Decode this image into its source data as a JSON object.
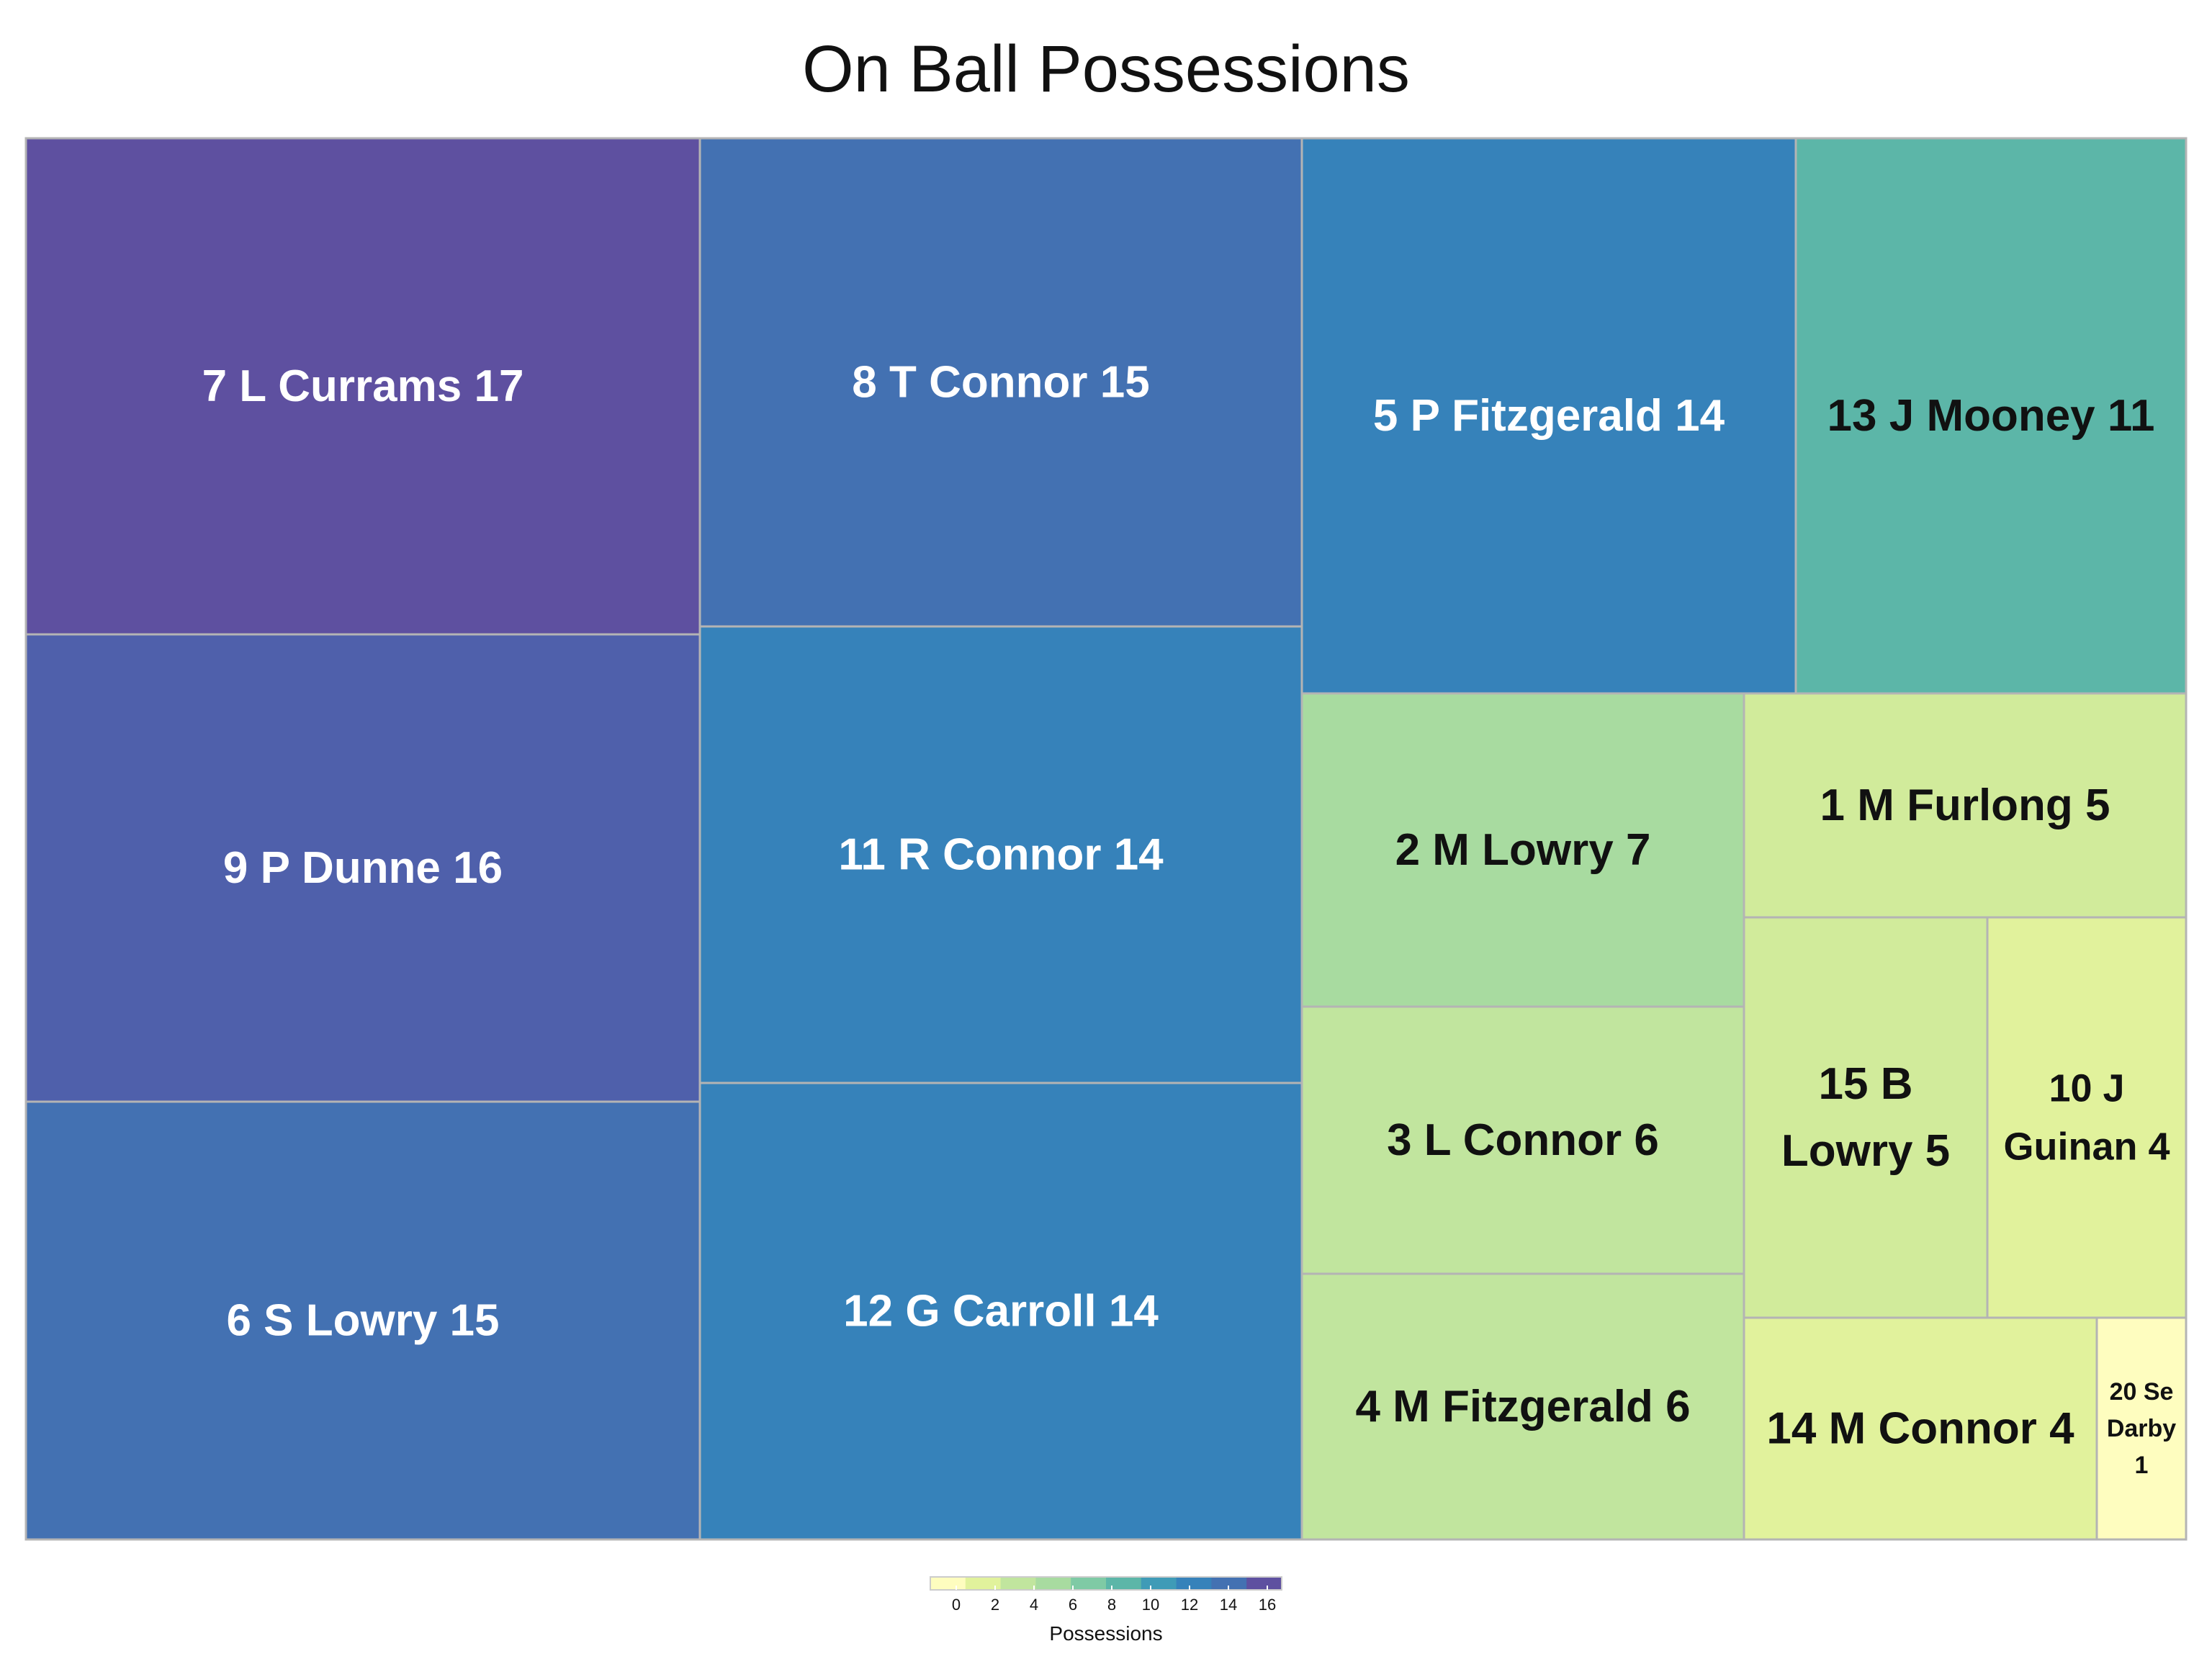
{
  "chart_data": {
    "type": "treemap",
    "title": "On Ball Possessions",
    "legend_title": "Possessions",
    "legend_ticks": [
      0,
      2,
      4,
      6,
      8,
      10,
      12,
      14,
      16
    ],
    "color_range": [
      0,
      17
    ],
    "items": [
      {
        "label": "7 L Currams 17",
        "lines": [
          "7 L Currams 17"
        ],
        "value": 17,
        "color": "#5e50a0",
        "text_color": "#ffffff"
      },
      {
        "label": "9 P Dunne 16",
        "lines": [
          "9 P Dunne 16"
        ],
        "value": 16,
        "color": "#4f60ab",
        "text_color": "#ffffff"
      },
      {
        "label": "6 S Lowry 15",
        "lines": [
          "6 S Lowry 15"
        ],
        "value": 15,
        "color": "#4371b2",
        "text_color": "#ffffff"
      },
      {
        "label": "8 T Connor 15",
        "lines": [
          "8 T Connor 15"
        ],
        "value": 15,
        "color": "#4371b2",
        "text_color": "#ffffff"
      },
      {
        "label": "11 R Connor 14",
        "lines": [
          "11 R Connor 14"
        ],
        "value": 14,
        "color": "#3682ba",
        "text_color": "#ffffff"
      },
      {
        "label": "12 G Carroll 14",
        "lines": [
          "12 G Carroll 14"
        ],
        "value": 14,
        "color": "#3682ba",
        "text_color": "#ffffff"
      },
      {
        "label": "5 P Fitzgerald 14",
        "lines": [
          "5 P Fitzgerald 14"
        ],
        "value": 14,
        "color": "#3682ba",
        "text_color": "#ffffff"
      },
      {
        "label": "13 J Mooney 11",
        "lines": [
          "13 J Mooney 11"
        ],
        "value": 11,
        "color": "#5cb6a8",
        "text_color": "#111111"
      },
      {
        "label": "2 M Lowry 7",
        "lines": [
          "2 M Lowry 7"
        ],
        "value": 7,
        "color": "#a8dba0",
        "text_color": "#111111"
      },
      {
        "label": "3 L Connor 6",
        "lines": [
          "3 L Connor 6"
        ],
        "value": 6,
        "color": "#c1e59e",
        "text_color": "#111111"
      },
      {
        "label": "4 M Fitzgerald 6",
        "lines": [
          "4 M Fitzgerald 6"
        ],
        "value": 6,
        "color": "#c1e59e",
        "text_color": "#111111"
      },
      {
        "label": "1 M Furlong 5",
        "lines": [
          "1 M Furlong 5"
        ],
        "value": 5,
        "color": "#d1eb9b",
        "text_color": "#111111"
      },
      {
        "label": "15 B Lowry 5",
        "lines": [
          "15 B",
          "Lowry 5"
        ],
        "value": 5,
        "color": "#d1eb9b",
        "text_color": "#111111"
      },
      {
        "label": "10 J Guinan 4",
        "lines": [
          "10 J",
          "Guinan 4"
        ],
        "value": 4,
        "color": "#e1f29c",
        "text_color": "#111111"
      },
      {
        "label": "14 M Connor 4",
        "lines": [
          "14 M Connor 4"
        ],
        "value": 4,
        "color": "#e1f29c",
        "text_color": "#111111"
      },
      {
        "label": "20 Se Darby 1",
        "lines": [
          "20 Se",
          "Darby",
          "1"
        ],
        "value": 1,
        "color": "#fefdbf",
        "text_color": "#111111"
      }
    ]
  }
}
